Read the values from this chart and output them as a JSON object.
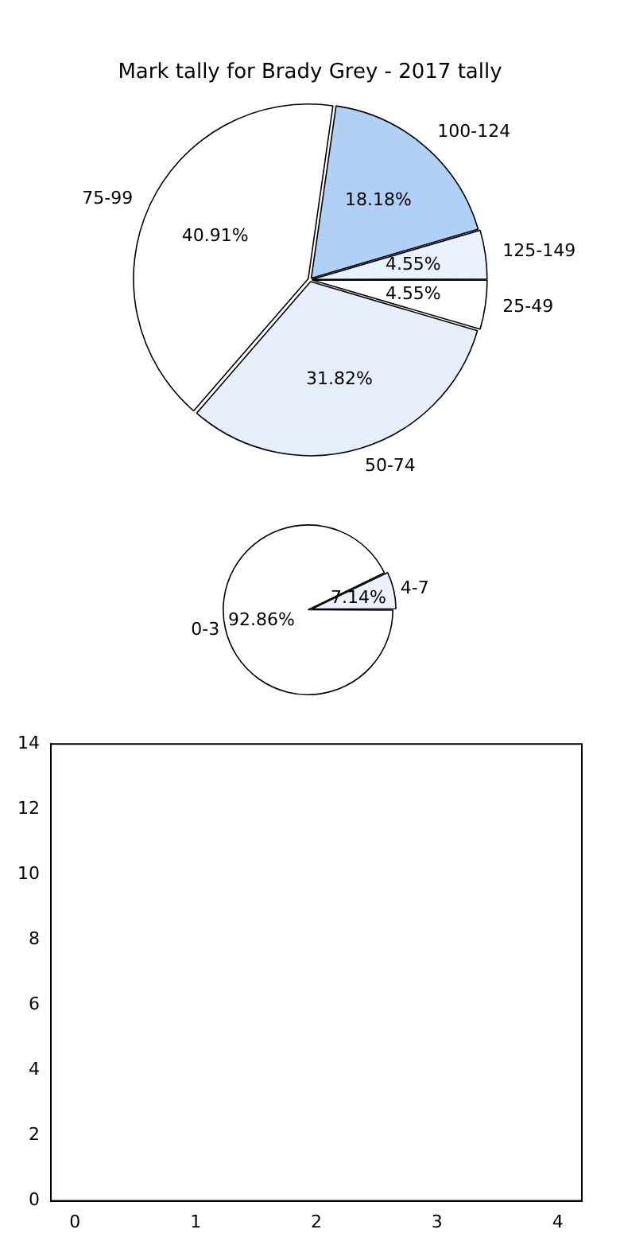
{
  "chart_data": [
    {
      "type": "pie",
      "title": "Mark tally for Brady Grey - 2017 tally",
      "categories": [
        "25-49",
        "50-74",
        "75-99",
        "100-124",
        "125-149"
      ],
      "values": [
        4.55,
        31.82,
        40.91,
        18.18,
        4.55
      ],
      "colors": [
        "#ffffff",
        "#e6eef9",
        "#ffffff",
        "#b0d0f5",
        "#e9f1fc"
      ],
      "value_labels": [
        "4.55%",
        "31.82%",
        "40.91%",
        "18.18%",
        "4.55%"
      ]
    },
    {
      "type": "pie",
      "categories": [
        "0-3",
        "4-7"
      ],
      "values": [
        92.86,
        7.14
      ],
      "colors": [
        "#ffffff",
        "#eaf1fc"
      ],
      "value_labels": [
        "92.86%",
        "7.14%"
      ]
    },
    {
      "type": "line",
      "xlim": [
        -0.2,
        4.2
      ],
      "xticks": [
        0,
        1,
        2,
        3,
        4
      ],
      "ylim": [
        0,
        14
      ],
      "yticks": [
        0,
        2,
        4,
        6,
        8,
        10,
        12,
        14
      ]
    }
  ]
}
